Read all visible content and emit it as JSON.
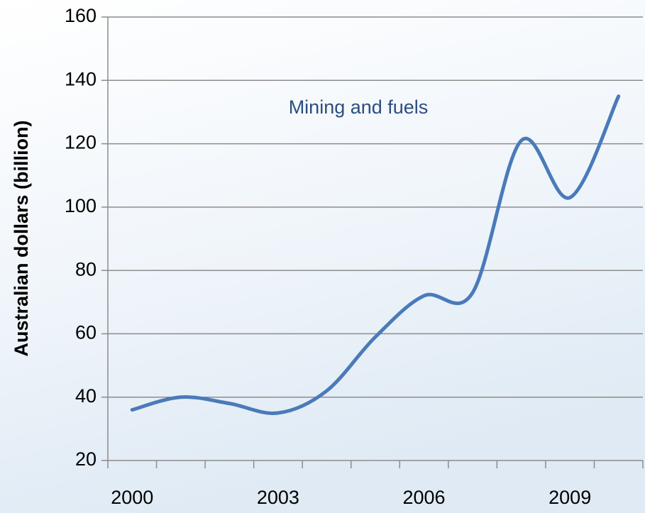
{
  "chart_data": {
    "type": "line",
    "ylabel": "Australian dollars (billion)",
    "annotation": "Mining and fuels",
    "categories": [
      "2000",
      null,
      null,
      "2003",
      null,
      null,
      "2006",
      null,
      null,
      "2009",
      null
    ],
    "series": [
      {
        "name": "Mining and fuels",
        "color": "#4a7ab9",
        "values": [
          36,
          40,
          38,
          35,
          42,
          59,
          72,
          73,
          121,
          103,
          135
        ]
      }
    ],
    "ylim": [
      20,
      160
    ],
    "yticks": [
      20,
      40,
      60,
      80,
      100,
      120,
      140,
      160
    ],
    "grid": true,
    "smooth": true
  }
}
